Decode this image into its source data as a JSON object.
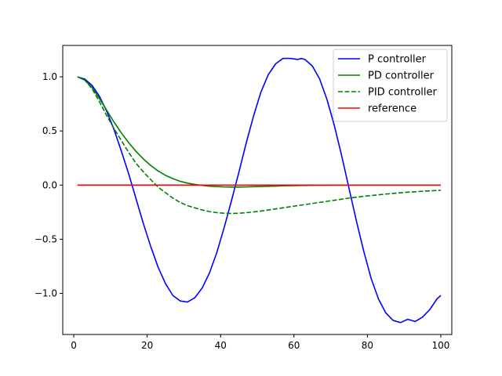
{
  "chart_data": {
    "type": "line",
    "title": "",
    "xlabel": "",
    "ylabel": "",
    "xlim": [
      -3,
      103
    ],
    "ylim": [
      -1.38,
      1.29
    ],
    "xticks": [
      0,
      20,
      40,
      60,
      80,
      100
    ],
    "xtick_labels": [
      "0",
      "20",
      "40",
      "60",
      "80",
      "100"
    ],
    "yticks": [
      -1.0,
      -0.5,
      0.0,
      0.5,
      1.0
    ],
    "ytick_labels": [
      "−1.0",
      "−0.5",
      "0.0",
      "0.5",
      "1.0"
    ],
    "grid": false,
    "legend_position": "top-right",
    "series": [
      {
        "name": "P controller",
        "color": "#0000ff",
        "style": "solid",
        "x": [
          1,
          3,
          5,
          7,
          9,
          11,
          13,
          15,
          17,
          19,
          21,
          23,
          25,
          27,
          29,
          31,
          33,
          35,
          37,
          39,
          41,
          43,
          45,
          47,
          49,
          51,
          53,
          55,
          57,
          59,
          61,
          62,
          63,
          65,
          67,
          69,
          71,
          73,
          75,
          77,
          79,
          81,
          83,
          85,
          87,
          89,
          91,
          93,
          95,
          97,
          99,
          100
        ],
        "y": [
          1.0,
          0.98,
          0.92,
          0.82,
          0.68,
          0.51,
          0.31,
          0.1,
          -0.13,
          -0.36,
          -0.57,
          -0.76,
          -0.91,
          -1.02,
          -1.07,
          -1.08,
          -1.04,
          -0.95,
          -0.81,
          -0.62,
          -0.39,
          -0.14,
          0.12,
          0.39,
          0.64,
          0.86,
          1.02,
          1.12,
          1.17,
          1.17,
          1.16,
          1.17,
          1.16,
          1.1,
          0.98,
          0.79,
          0.55,
          0.27,
          -0.03,
          -0.33,
          -0.61,
          -0.86,
          -1.05,
          -1.18,
          -1.25,
          -1.27,
          -1.24,
          -1.26,
          -1.22,
          -1.15,
          -1.05,
          -1.02
        ]
      },
      {
        "name": "PD controller",
        "color": "#008000",
        "style": "solid",
        "x": [
          1,
          3,
          5,
          7,
          9,
          11,
          13,
          15,
          17,
          19,
          21,
          23,
          25,
          27,
          29,
          31,
          33,
          35,
          37,
          39,
          41,
          43,
          45,
          47,
          49,
          51,
          53,
          55,
          57,
          60,
          65,
          70,
          80,
          90,
          100
        ],
        "y": [
          1.0,
          0.97,
          0.9,
          0.8,
          0.69,
          0.58,
          0.48,
          0.39,
          0.31,
          0.24,
          0.18,
          0.13,
          0.09,
          0.06,
          0.035,
          0.018,
          0.006,
          -0.003,
          -0.01,
          -0.014,
          -0.017,
          -0.018,
          -0.018,
          -0.017,
          -0.015,
          -0.013,
          -0.011,
          -0.009,
          -0.007,
          -0.005,
          -0.002,
          -0.001,
          0.0,
          0.0,
          0.0
        ]
      },
      {
        "name": "PID controller",
        "color": "#008000",
        "style": "dashed",
        "x": [
          1,
          3,
          5,
          7,
          9,
          11,
          13,
          15,
          17,
          19,
          21,
          23,
          25,
          27,
          29,
          31,
          33,
          35,
          37,
          39,
          41,
          43,
          45,
          47,
          49,
          51,
          55,
          60,
          65,
          70,
          75,
          80,
          85,
          90,
          95,
          100
        ],
        "y": [
          1.0,
          0.97,
          0.89,
          0.77,
          0.64,
          0.52,
          0.41,
          0.3,
          0.2,
          0.12,
          0.05,
          -0.02,
          -0.07,
          -0.12,
          -0.16,
          -0.19,
          -0.21,
          -0.23,
          -0.245,
          -0.255,
          -0.26,
          -0.262,
          -0.26,
          -0.255,
          -0.248,
          -0.24,
          -0.22,
          -0.195,
          -0.17,
          -0.145,
          -0.12,
          -0.1,
          -0.083,
          -0.068,
          -0.057,
          -0.048
        ]
      },
      {
        "name": "reference",
        "color": "#ff0000",
        "style": "solid",
        "x": [
          1,
          100
        ],
        "y": [
          0.0,
          0.0
        ]
      }
    ]
  }
}
